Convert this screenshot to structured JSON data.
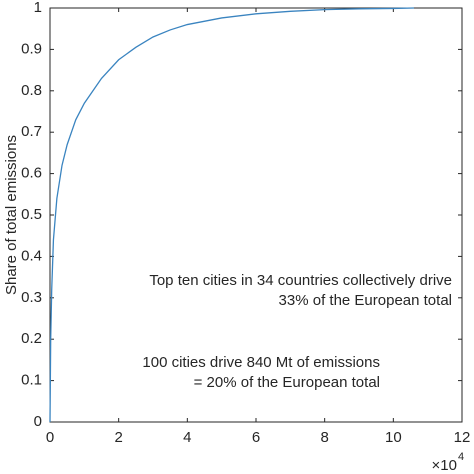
{
  "chart_data": {
    "type": "line",
    "y_label": "Share of total emissions",
    "x_multiplier": {
      "base": "×10",
      "exponent": "4"
    },
    "x": [
      0,
      0.02,
      0.05,
      0.1,
      0.2,
      0.35,
      0.5,
      0.75,
      1,
      1.5,
      2,
      2.5,
      3,
      3.5,
      4,
      5,
      6,
      7,
      8,
      9,
      10,
      10.6
    ],
    "series": [
      {
        "name": "Share",
        "color": "#3a84c0",
        "values": [
          0,
          0.2,
          0.32,
          0.44,
          0.54,
          0.62,
          0.67,
          0.73,
          0.77,
          0.83,
          0.875,
          0.905,
          0.93,
          0.947,
          0.96,
          0.976,
          0.986,
          0.992,
          0.996,
          0.998,
          0.999,
          1
        ]
      }
    ],
    "xlim": [
      0,
      12
    ],
    "xticks": [
      0,
      2,
      4,
      6,
      8,
      10,
      12
    ],
    "ylim": [
      0,
      1
    ],
    "yticks": [
      0,
      0.1,
      0.2,
      0.3,
      0.4,
      0.5,
      0.6,
      0.7,
      0.8,
      0.9,
      1
    ],
    "grid": false,
    "annotations": [
      [
        "Top ten cities in 34 countries collectively drive",
        "33% of the European total"
      ],
      [
        "100 cities drive 840 Mt of emissions",
        "= 20% of the European total"
      ]
    ]
  }
}
